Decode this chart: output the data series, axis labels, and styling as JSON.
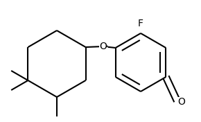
{
  "background": "#ffffff",
  "line_color": "#000000",
  "line_width": 1.5,
  "font_size": 9,
  "figsize": [
    2.9,
    1.76
  ],
  "dpi": 100,
  "xlim": [
    0,
    2.9
  ],
  "ylim": [
    0,
    1.76
  ]
}
